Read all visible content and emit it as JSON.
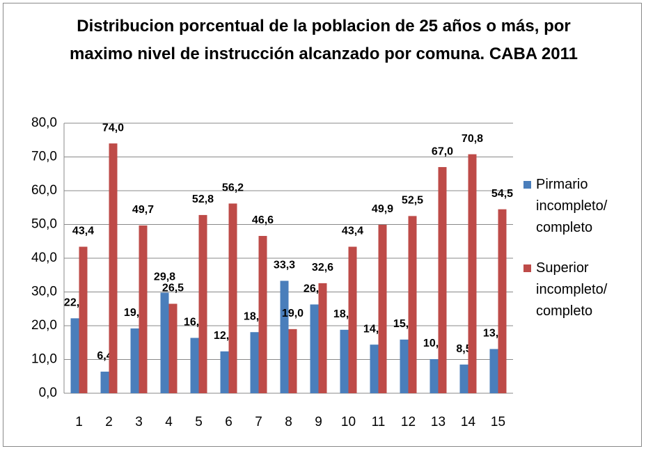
{
  "chart_data": {
    "type": "bar",
    "title": "Distribucion porcentual de la poblacion de 25 años o más, por maximo nivel de instrucción alcanzado por comuna. CABA 2011",
    "categories": [
      "1",
      "2",
      "3",
      "4",
      "5",
      "6",
      "7",
      "8",
      "9",
      "10",
      "11",
      "12",
      "13",
      "14",
      "15"
    ],
    "series": [
      {
        "name": "Pirmario incompleto/ completo",
        "color": "#4a7ebb",
        "values": [
          22.2,
          6.4,
          19.2,
          29.8,
          16.4,
          12.4,
          18.1,
          33.3,
          26.3,
          18.8,
          14.4,
          15.9,
          10.1,
          8.5,
          13.1
        ],
        "value_labels": [
          "22,2",
          "6,4",
          "19,2",
          "29,8",
          "16,4",
          "12,4",
          "18,1",
          "33,3",
          "26,3",
          "18,8",
          "14,4",
          "15,9",
          "10,1",
          "8,5",
          "13,1"
        ]
      },
      {
        "name": "Superior incompleto/ completo",
        "color": "#be4b48",
        "values": [
          43.4,
          74.0,
          49.7,
          26.5,
          52.8,
          56.2,
          46.6,
          19.0,
          32.6,
          43.4,
          49.9,
          52.5,
          67.0,
          70.8,
          54.5
        ],
        "value_labels": [
          "43,4",
          "74,0",
          "49,7",
          "26,5",
          "52,8",
          "56,2",
          "46,6",
          "19,0",
          "32,6",
          "43,4",
          "49,9",
          "52,5",
          "67,0",
          "70,8",
          "54,5"
        ]
      }
    ],
    "ylim": [
      0,
      80
    ],
    "yticks": [
      {
        "value": 0,
        "label": "0,0"
      },
      {
        "value": 10,
        "label": "10,0"
      },
      {
        "value": 20,
        "label": "20,0"
      },
      {
        "value": 30,
        "label": "30,0"
      },
      {
        "value": 40,
        "label": "40,0"
      },
      {
        "value": 50,
        "label": "50,0"
      },
      {
        "value": 60,
        "label": "60,0"
      },
      {
        "value": 70,
        "label": "70,0"
      },
      {
        "value": 80,
        "label": "80,0"
      }
    ],
    "grid": true,
    "legend": "right"
  }
}
